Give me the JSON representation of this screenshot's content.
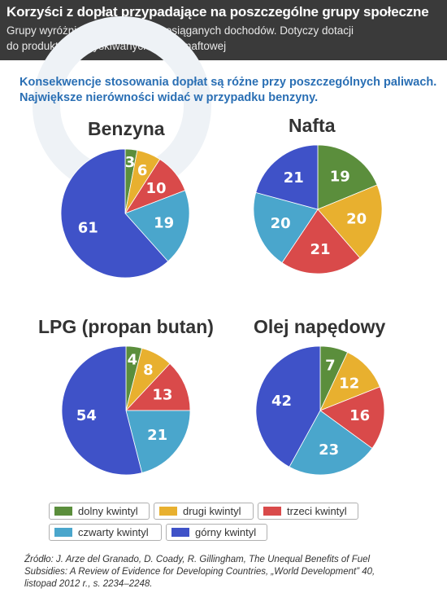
{
  "header": {
    "title": "Korzyści z dopłat przypadające na poszczególne grupy społeczne",
    "subtitle_line1": "Grupy wyróżnione na podstawie osiąganych dochodów. Dotyczy dotacji",
    "subtitle_line2": "do produktów pozyskiwanych z ropy naftowej"
  },
  "intro": {
    "line1": "Konsekwencje stosowania dopłat są różne przy poszczególnych paliwach.",
    "line2": "Największe nierówności widać w przypadku benzyny."
  },
  "colors": {
    "dolny": "#5b8e3c",
    "drugi": "#e8b02f",
    "trzeci": "#d94a4a",
    "czwarty": "#4aa6cc",
    "gorny": "#3f52c8"
  },
  "legend": [
    {
      "label": "dolny kwintyl",
      "key": "dolny"
    },
    {
      "label": "drugi kwintyl",
      "key": "drugi"
    },
    {
      "label": "trzeci kwintyl",
      "key": "trzeci"
    },
    {
      "label": "czwarty kwintyl",
      "key": "czwarty"
    },
    {
      "label": "górny kwintyl",
      "key": "gorny"
    }
  ],
  "chart_data": [
    {
      "type": "pie",
      "title": "Benzyna",
      "categories": [
        "dolny kwintyl",
        "drugi kwintyl",
        "trzeci kwintyl",
        "czwarty kwintyl",
        "górny kwintyl"
      ],
      "values": [
        3,
        6,
        10,
        19,
        61
      ]
    },
    {
      "type": "pie",
      "title": "Nafta",
      "categories": [
        "dolny kwintyl",
        "drugi kwintyl",
        "trzeci kwintyl",
        "czwarty kwintyl",
        "górny kwintyl"
      ],
      "values": [
        19,
        20,
        21,
        20,
        21
      ]
    },
    {
      "type": "pie",
      "title": "LPG (propan butan)",
      "categories": [
        "dolny kwintyl",
        "drugi kwintyl",
        "trzeci kwintyl",
        "czwarty kwintyl",
        "górny kwintyl"
      ],
      "values": [
        4,
        8,
        13,
        21,
        54
      ]
    },
    {
      "type": "pie",
      "title": "Olej napędowy",
      "categories": [
        "dolny kwintyl",
        "drugi kwintyl",
        "trzeci kwintyl",
        "czwarty kwintyl",
        "górny kwintyl"
      ],
      "values": [
        7,
        12,
        16,
        23,
        42
      ]
    }
  ],
  "source": {
    "line1": "Źródło: J. Arze del Granado, D. Coady, R. Gillingham, The Unequal Benefits of Fuel",
    "line2": "Subsidies: A Review of Evidence for Developing Countries, „World Development” 40,",
    "line3": "listopad 2012 r., s. 2234–2248."
  }
}
